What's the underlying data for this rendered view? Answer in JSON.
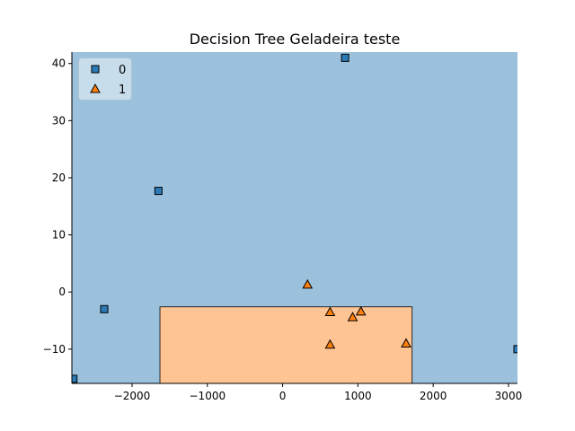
{
  "chart_data": {
    "type": "scatter",
    "title": "Decision Tree Geladeira teste",
    "xlabel": "",
    "ylabel": "",
    "xlim": [
      -2800,
      3120
    ],
    "ylim": [
      -16,
      42
    ],
    "x_ticks": [
      -2000,
      -1000,
      0,
      1000,
      2000,
      3000
    ],
    "x_tick_labels": [
      "−2000",
      "−1000",
      "0",
      "1000",
      "2000",
      "3000"
    ],
    "y_ticks": [
      -10,
      0,
      10,
      20,
      30,
      40
    ],
    "y_tick_labels": [
      "−10",
      "0",
      "10",
      "20",
      "30",
      "40"
    ],
    "grid": false,
    "legend_position": "top-left",
    "decision_regions": [
      {
        "class": "0",
        "x": [
          -2800,
          3120
        ],
        "y": [
          -16,
          42
        ],
        "color": "#9bc1dd"
      },
      {
        "class": "1",
        "x": [
          -1630,
          1720
        ],
        "y": [
          -16,
          -2.6
        ],
        "color": "#ffc494"
      }
    ],
    "series": [
      {
        "name": "0",
        "marker": "square",
        "color": "#2c7bb6",
        "points": [
          {
            "x": 830,
            "y": 41
          },
          {
            "x": -1650,
            "y": 17.7
          },
          {
            "x": -2370,
            "y": -3
          },
          {
            "x": -2780,
            "y": -15.2
          },
          {
            "x": 3120,
            "y": -10
          }
        ]
      },
      {
        "name": "1",
        "marker": "triangle",
        "color": "#ff7f0e",
        "points": [
          {
            "x": 330,
            "y": 1.3
          },
          {
            "x": 630,
            "y": -3.5
          },
          {
            "x": 1040,
            "y": -3.4
          },
          {
            "x": 930,
            "y": -4.4
          },
          {
            "x": 630,
            "y": -9.2
          },
          {
            "x": 1640,
            "y": -9
          }
        ]
      }
    ]
  }
}
